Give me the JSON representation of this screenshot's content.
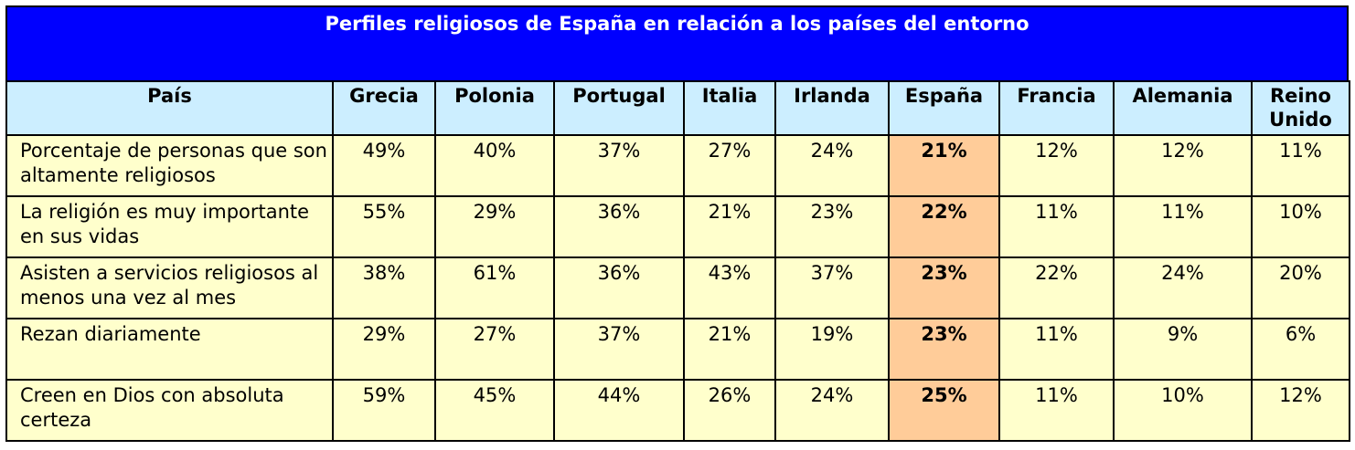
{
  "title": "Perfiles religiosos de España en relación a los países del entorno",
  "highlight_color": "#ffcc99",
  "header_color": "#cceeff",
  "title_bg_color": "#0000ff",
  "cell_color": "#ffffcc",
  "columns": [
    "País",
    "Grecia",
    "Polonia",
    "Portugal",
    "Italia",
    "Irlanda",
    "España",
    "Francia",
    "Alemania",
    "Reino Unido"
  ],
  "rows": [
    {
      "label": "Porcentaje de personas que son altamente religiosos",
      "values": [
        "49%",
        "40%",
        "37%",
        "27%",
        "24%",
        "21%",
        "12%",
        "12%",
        "11%"
      ]
    },
    {
      "label": "La religión es muy importante en sus vidas",
      "values": [
        "55%",
        "29%",
        "36%",
        "21%",
        "23%",
        "22%",
        "11%",
        "11%",
        "10%"
      ]
    },
    {
      "label": "Asisten a servicios religiosos al menos una vez al mes",
      "values": [
        "38%",
        "61%",
        "36%",
        "43%",
        "37%",
        "23%",
        "22%",
        "24%",
        "20%"
      ]
    },
    {
      "label": "Rezan diariamente",
      "values": [
        "29%",
        "27%",
        "37%",
        "21%",
        "19%",
        "23%",
        "11%",
        "9%",
        "6%"
      ]
    },
    {
      "label": "Creen en Dios con absoluta certeza",
      "values": [
        "59%",
        "45%",
        "44%",
        "26%",
        "24%",
        "25%",
        "11%",
        "10%",
        "12%"
      ]
    }
  ]
}
